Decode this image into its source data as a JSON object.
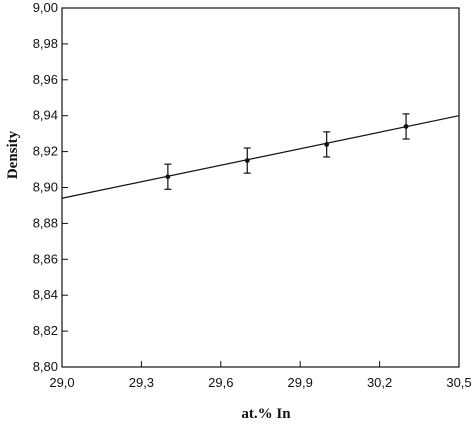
{
  "chart_data": {
    "type": "scatter",
    "title": "",
    "xlabel": "at.% In",
    "ylabel": "Density",
    "xlim": [
      29.0,
      30.5
    ],
    "ylim": [
      8.8,
      9.0
    ],
    "x_ticks": [
      29.0,
      29.3,
      29.6,
      29.9,
      30.2,
      30.5
    ],
    "x_tick_labels": [
      "29,0",
      "29,3",
      "29,6",
      "29,9",
      "30,2",
      "30,5"
    ],
    "y_ticks": [
      8.8,
      8.82,
      8.84,
      8.86,
      8.88,
      8.9,
      8.92,
      8.94,
      8.96,
      8.98,
      9.0
    ],
    "y_tick_labels": [
      "8,80",
      "8,82",
      "8,84",
      "8,86",
      "8,88",
      "8,90",
      "8,92",
      "8,94",
      "8,96",
      "8,98",
      "9,00"
    ],
    "grid": false,
    "series": [
      {
        "points": [
          {
            "x": 29.4,
            "y": 8.906,
            "err": 0.007
          },
          {
            "x": 29.7,
            "y": 8.915,
            "err": 0.007
          },
          {
            "x": 30.0,
            "y": 8.924,
            "err": 0.007
          },
          {
            "x": 30.3,
            "y": 8.934,
            "err": 0.007
          }
        ]
      }
    ],
    "fit_line": {
      "x": [
        29.0,
        30.5
      ],
      "y": [
        8.894,
        8.94
      ]
    },
    "colors": {
      "ink": "#111111",
      "background": "#ffffff"
    }
  }
}
